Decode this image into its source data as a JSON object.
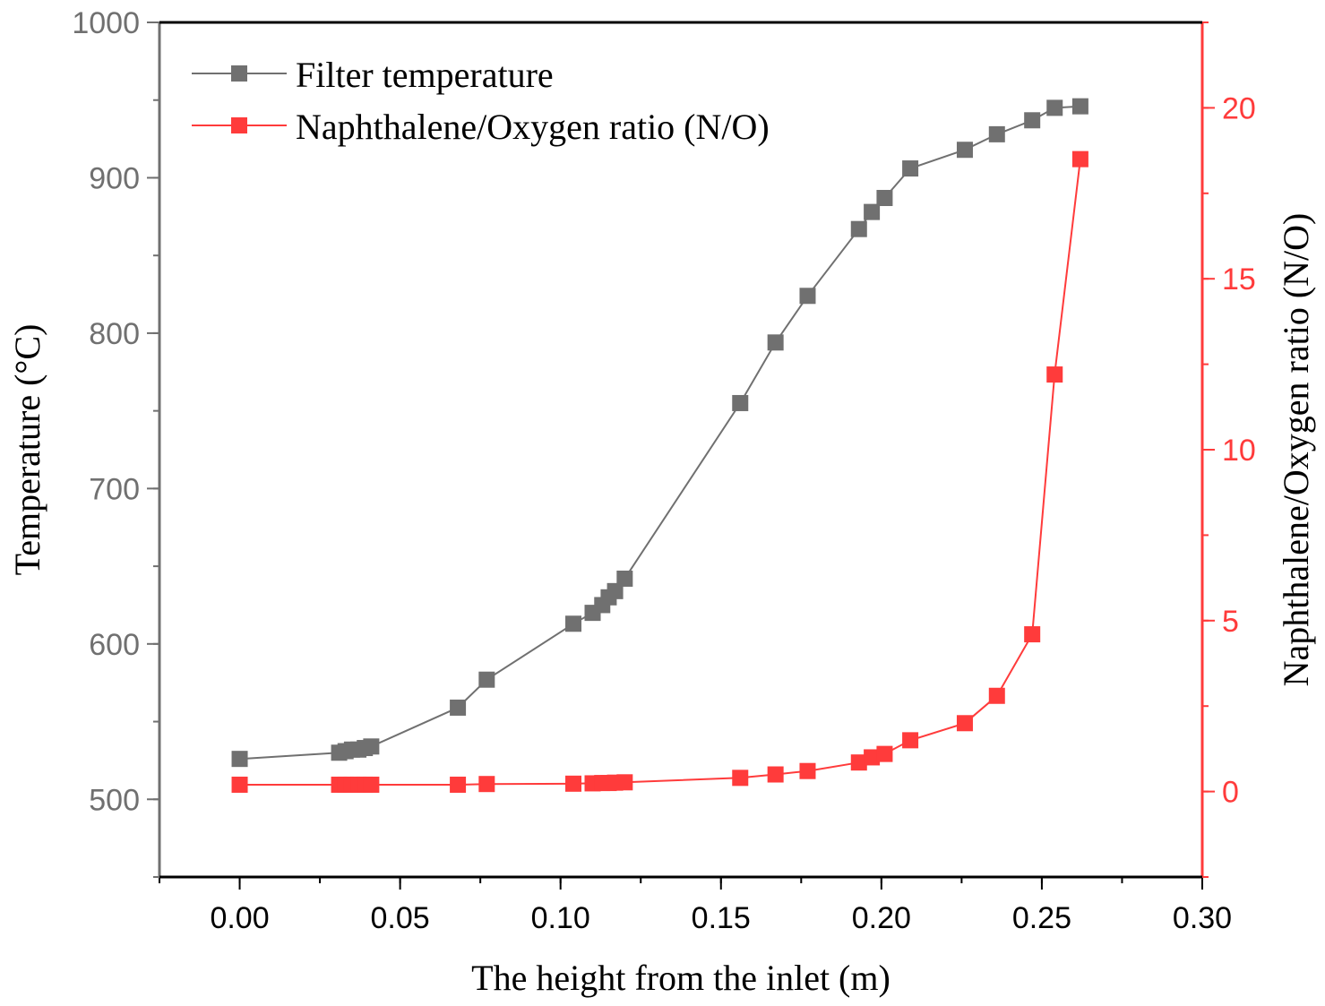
{
  "chart_data": {
    "type": "line",
    "xlabel": "The height from the inlet (m)",
    "ylabel_left": "Temperature (°C)",
    "ylabel_right": "Naphthalene/Oxygen ratio (N/O)",
    "xlim": [
      -0.025,
      0.3
    ],
    "ylim_left": [
      450,
      1000
    ],
    "ylim_right": [
      -2.5,
      22.5
    ],
    "x_ticks": [
      "0.00",
      "0.05",
      "0.10",
      "0.15",
      "0.20",
      "0.25",
      "0.30"
    ],
    "y_left_ticks": [
      "500",
      "600",
      "700",
      "800",
      "900",
      "1000"
    ],
    "y_right_ticks": [
      "0",
      "5",
      "10",
      "15",
      "20"
    ],
    "grid": false,
    "legend_position": "top-left",
    "series": [
      {
        "name": "Filter temperature",
        "axis": "left",
        "color": "#707070",
        "marker": "square",
        "x": [
          0.0,
          0.031,
          0.033,
          0.035,
          0.037,
          0.039,
          0.041,
          0.068,
          0.077,
          0.104,
          0.11,
          0.113,
          0.115,
          0.117,
          0.12,
          0.156,
          0.167,
          0.177,
          0.193,
          0.197,
          0.201,
          0.209,
          0.226,
          0.236,
          0.247,
          0.254,
          0.262
        ],
        "values": [
          526,
          530,
          531,
          532,
          532,
          533,
          534,
          559,
          577,
          613,
          620,
          625,
          630,
          634,
          642,
          755,
          794,
          824,
          867,
          878,
          887,
          906,
          918,
          928,
          937,
          945,
          946
        ]
      },
      {
        "name": "Naphthalene/Oxygen ratio (N/O)",
        "axis": "right",
        "color": "#ff3b3b",
        "marker": "square",
        "x": [
          0.0,
          0.031,
          0.033,
          0.035,
          0.037,
          0.039,
          0.041,
          0.068,
          0.077,
          0.104,
          0.11,
          0.113,
          0.115,
          0.117,
          0.12,
          0.156,
          0.167,
          0.177,
          0.193,
          0.197,
          0.201,
          0.209,
          0.226,
          0.236,
          0.247,
          0.254,
          0.262
        ],
        "values": [
          0.2,
          0.2,
          0.2,
          0.2,
          0.2,
          0.2,
          0.2,
          0.2,
          0.22,
          0.23,
          0.24,
          0.25,
          0.25,
          0.26,
          0.27,
          0.4,
          0.5,
          0.6,
          0.85,
          1.0,
          1.1,
          1.5,
          2.0,
          2.8,
          4.6,
          12.2,
          18.5
        ]
      }
    ]
  }
}
